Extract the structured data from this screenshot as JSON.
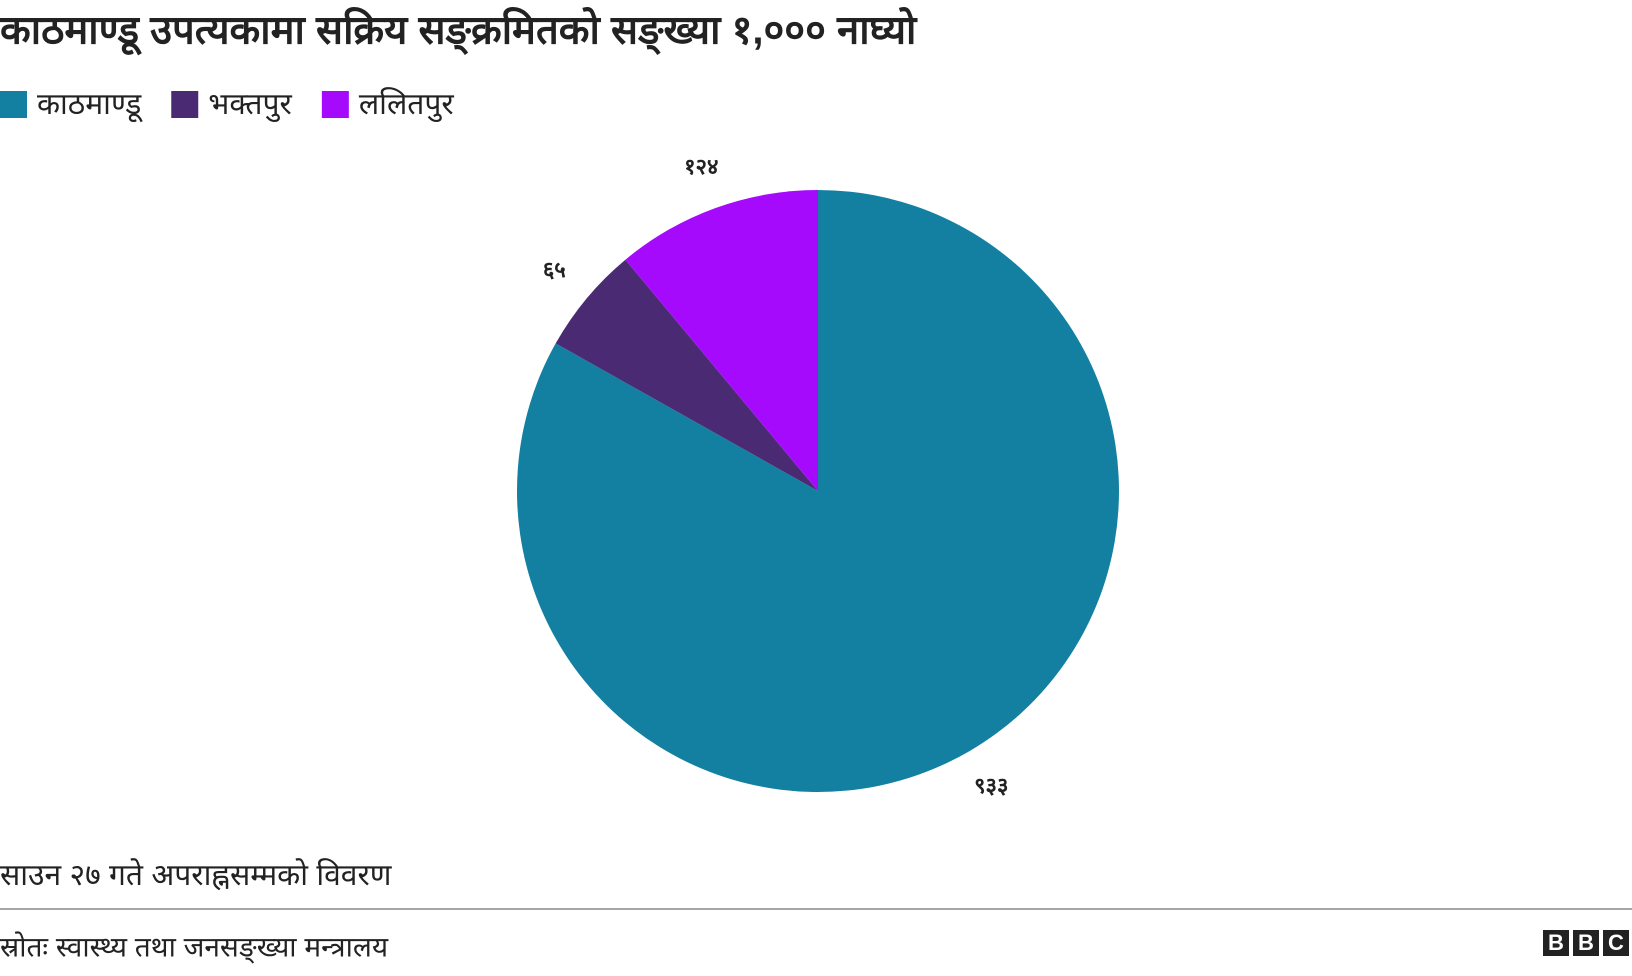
{
  "chart_data": {
    "type": "pie",
    "title": "काठमाण्डू उपत्यकामा सक्रिय सङ्क्रमितको सङ्ख्या १,००० नाघ्यो",
    "categories": [
      "काठमाण्डू",
      "भक्तपुर",
      "ललितपुर"
    ],
    "values": [
      933,
      65,
      124
    ],
    "value_labels": [
      "९३३",
      "६५",
      "१२४"
    ],
    "colors": [
      "#1380a1",
      "#4b2a74",
      "#a50afc"
    ],
    "note": "साउन २७ गते अपराह्नसम्मको विवरण",
    "source": "स्रोतः स्वास्थ्य तथा जनसङ्ख्या मन्त्रालय",
    "logo": [
      "B",
      "B",
      "C"
    ]
  }
}
